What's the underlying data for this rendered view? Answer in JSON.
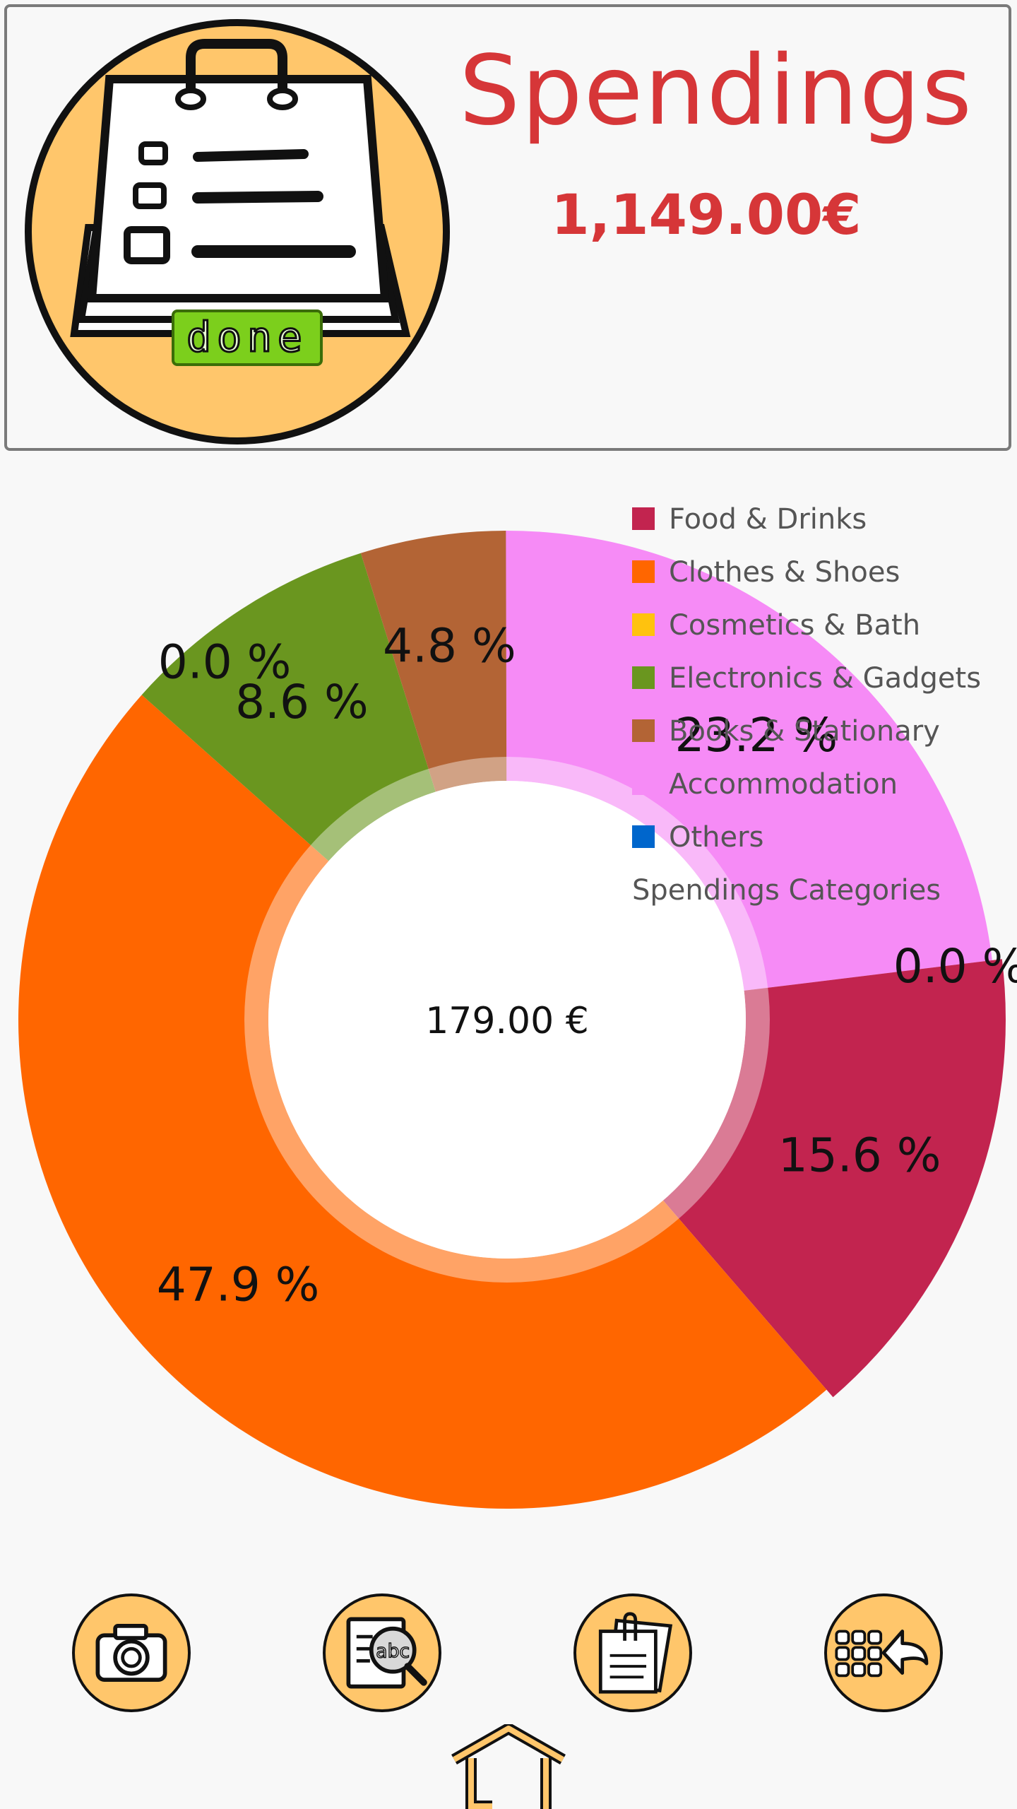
{
  "header": {
    "title": "Spendings",
    "total": "1,149.00€",
    "logo_badge": "done"
  },
  "chart_data": {
    "type": "donut",
    "title": "",
    "center_value": "179.00 €",
    "legend_title": "Spendings Categories",
    "legend_position": "top-right",
    "categories": [
      {
        "name": "Food & Drinks",
        "color": "#c2244f",
        "percent": 15.6,
        "label": "15.6 %"
      },
      {
        "name": "Clothes & Shoes",
        "color": "#ff6600",
        "percent": 47.9,
        "label": "47.9 %"
      },
      {
        "name": "Cosmetics & Bath",
        "color": "#ffc20e",
        "percent": 0.0,
        "label": "0.0 %"
      },
      {
        "name": "Electronics & Gadgets",
        "color": "#6a961f",
        "percent": 8.6,
        "label": "8.6 %"
      },
      {
        "name": "Books & Stationary",
        "color": "#b36435",
        "percent": 4.8,
        "label": "4.8 %"
      },
      {
        "name": "Accommodation",
        "color": "#f68bf6",
        "percent": 23.2,
        "label": "23.2 %"
      },
      {
        "name": "Others",
        "color": "#0066cc",
        "percent": 0.0,
        "label": "0.0 %"
      }
    ]
  },
  "toolbar": {
    "icons": [
      "camera-icon",
      "text-search-icon",
      "clipboard-notes-icon",
      "keypad-back-icon"
    ],
    "home_icon": "home-icon"
  }
}
